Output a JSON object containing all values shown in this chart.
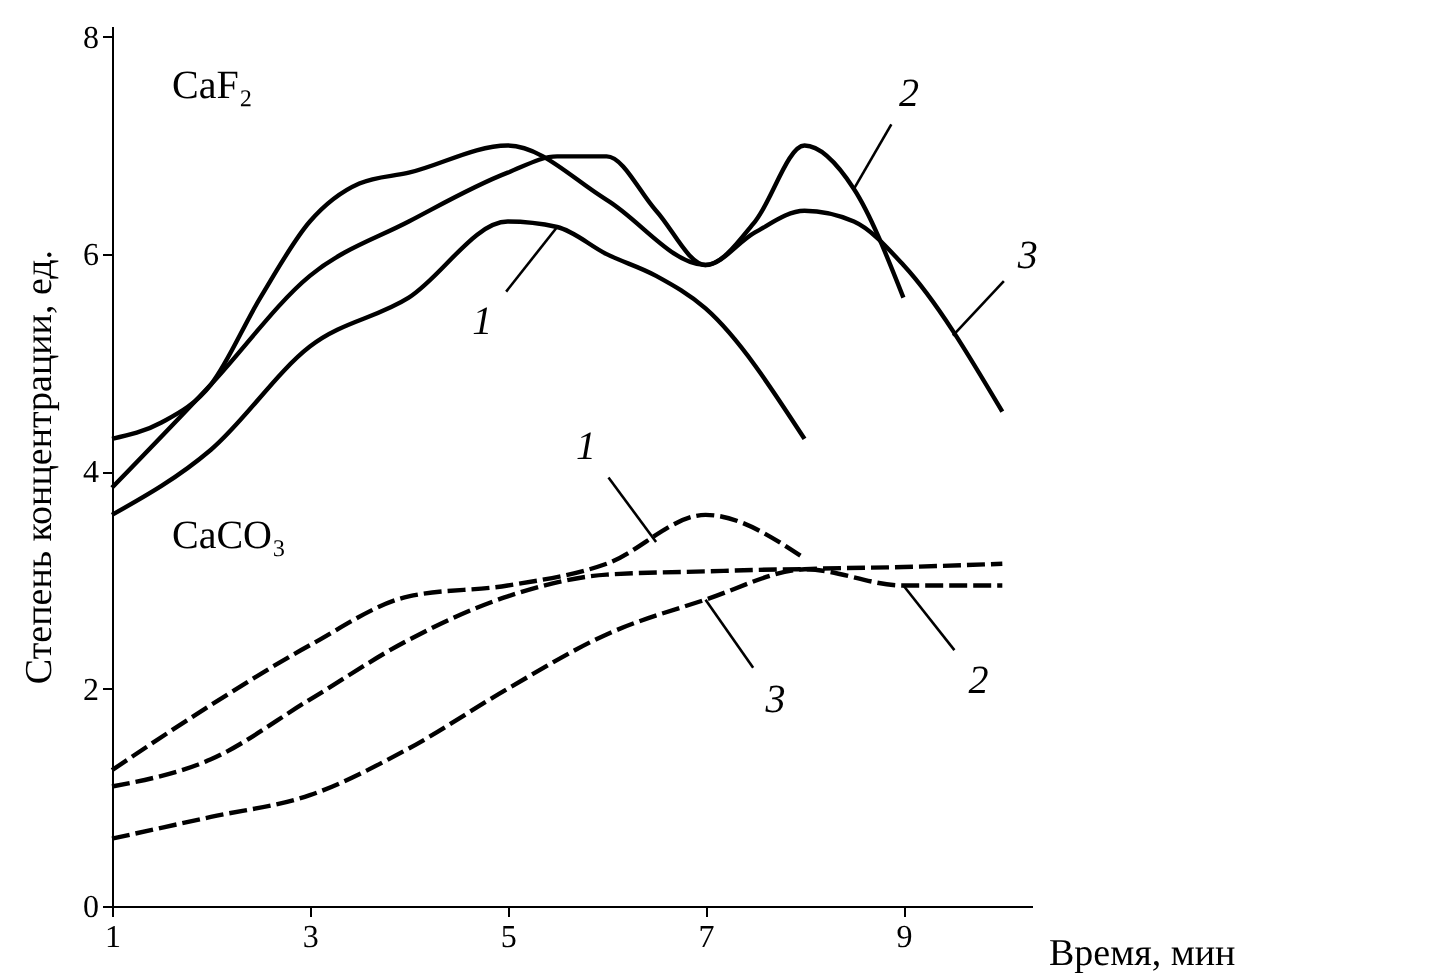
{
  "chart_data": {
    "type": "line",
    "xlabel": "Время, мин",
    "ylabel": "Степень концентрации, ед.",
    "xlim": [
      1,
      10.3
    ],
    "xticks": [
      1,
      3,
      5,
      7,
      9
    ],
    "ylim": [
      0,
      8.1
    ],
    "yticks": [
      0,
      2,
      4,
      6,
      8
    ],
    "grid": false,
    "legend": false,
    "marker": "none",
    "series": [
      {
        "color": "#000000",
        "line_style": "solid",
        "x": [
          1,
          2,
          3,
          4,
          5,
          5.5,
          6,
          6.5,
          7,
          8
        ],
        "values": [
          3.6,
          4.2,
          5.15,
          5.6,
          6.3,
          6.25,
          6.0,
          5.8,
          5.5,
          4.3
        ]
      },
      {
        "color": "#000000",
        "line_style": "solid",
        "x": [
          1,
          1.5,
          2,
          2.5,
          3,
          3.5,
          4,
          5,
          6,
          7,
          7.5,
          8,
          8.5,
          9
        ],
        "values": [
          4.3,
          4.45,
          4.8,
          5.6,
          6.3,
          6.65,
          6.75,
          7.0,
          6.5,
          5.9,
          6.3,
          7.0,
          6.6,
          5.6
        ]
      },
      {
        "color": "#000000",
        "line_style": "solid",
        "x": [
          1,
          2,
          3,
          4,
          5,
          5.5,
          6,
          6.5,
          7,
          7.5,
          8,
          8.5,
          9,
          10
        ],
        "values": [
          3.85,
          4.8,
          5.8,
          6.3,
          6.75,
          6.9,
          6.9,
          6.4,
          5.9,
          6.2,
          6.4,
          6.3,
          5.9,
          4.55
        ]
      },
      {
        "color": "#000000",
        "line_style": "dashed",
        "x": [
          1,
          2,
          3,
          4,
          5,
          6,
          7,
          8
        ],
        "values": [
          1.25,
          1.85,
          2.4,
          2.85,
          2.95,
          3.15,
          3.6,
          3.2
        ]
      },
      {
        "color": "#000000",
        "line_style": "dashed",
        "x": [
          1,
          2,
          3,
          4,
          5,
          6,
          7,
          8,
          9,
          10
        ],
        "values": [
          1.1,
          1.35,
          1.9,
          2.45,
          2.85,
          3.05,
          3.08,
          3.1,
          2.95,
          2.95
        ]
      },
      {
        "color": "#000000",
        "line_style": "dashed",
        "x": [
          1,
          2,
          3,
          4,
          5,
          6,
          7,
          8,
          9,
          10
        ],
        "values": [
          0.62,
          0.82,
          1.02,
          1.45,
          2.0,
          2.5,
          2.82,
          3.1,
          3.12,
          3.15
        ]
      }
    ],
    "annotations": [
      "CaF₂",
      "CaCO₃",
      {
        "text": "1",
        "x": 5.5,
        "y": 6.25
      },
      {
        "text": "2",
        "x": 8.5,
        "y": 6.6
      },
      {
        "text": "3",
        "x": 9.5,
        "y": 5.25
      },
      {
        "text": "1",
        "x": 6.5,
        "y": 3.35
      },
      {
        "text": "2",
        "x": 9,
        "y": 2.95
      },
      {
        "text": "3",
        "x": 7,
        "y": 2.82
      }
    ]
  }
}
